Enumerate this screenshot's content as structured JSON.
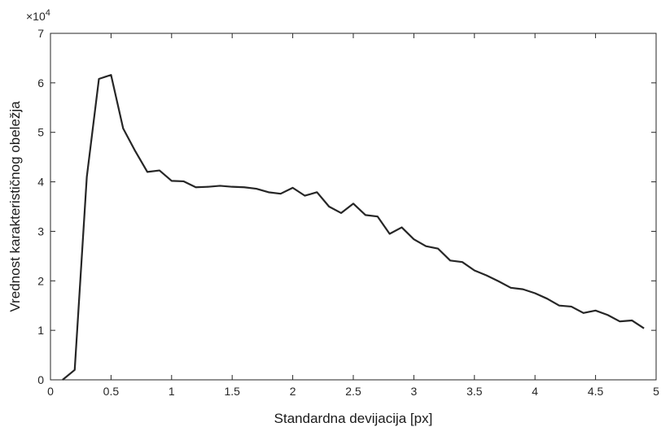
{
  "chart_data": {
    "type": "line",
    "xlabel": "Standardna devijacija [px]",
    "ylabel": "Vrednost karakterističnog obeležja",
    "y_exponent_label": "×10",
    "y_exponent_power": "4",
    "xlim": [
      0,
      5
    ],
    "ylim": [
      0,
      70000
    ],
    "x_ticks": [
      0,
      0.5,
      1,
      1.5,
      2,
      2.5,
      3,
      3.5,
      4,
      4.5,
      5
    ],
    "x_tick_labels": [
      "0",
      "0.5",
      "1",
      "1.5",
      "2",
      "2.5",
      "3",
      "3.5",
      "4",
      "4.5",
      "5"
    ],
    "y_ticks": [
      0,
      10000,
      20000,
      30000,
      40000,
      50000,
      60000,
      70000
    ],
    "y_tick_labels": [
      "0",
      "1",
      "2",
      "3",
      "4",
      "5",
      "6",
      "7"
    ],
    "grid": false,
    "box": true,
    "line_color": "#262626",
    "series": [
      {
        "x": [
          0.1,
          0.2,
          0.3,
          0.4,
          0.5,
          0.6,
          0.7,
          0.8,
          0.9,
          1.0,
          1.1,
          1.2,
          1.3,
          1.4,
          1.5,
          1.6,
          1.7,
          1.8,
          1.9,
          2.0,
          2.1,
          2.2,
          2.3,
          2.4,
          2.5,
          2.6,
          2.7,
          2.8,
          2.9,
          3.0,
          3.1,
          3.2,
          3.3,
          3.4,
          3.5,
          3.6,
          3.7,
          3.8,
          3.9,
          4.0,
          4.1,
          4.2,
          4.3,
          4.4,
          4.5,
          4.6,
          4.7,
          4.8,
          4.9
        ],
        "y": [
          0,
          2000,
          41000,
          60800,
          61600,
          50800,
          46200,
          42000,
          42300,
          40200,
          40100,
          38900,
          39000,
          39200,
          39000,
          38900,
          38600,
          37900,
          37600,
          38800,
          37200,
          37900,
          35000,
          33700,
          35600,
          33300,
          33000,
          29500,
          30800,
          28400,
          27000,
          26500,
          24100,
          23800,
          22100,
          21100,
          19900,
          18600,
          18300,
          17500,
          16400,
          15000,
          14800,
          13500,
          14000,
          13100,
          11800,
          12000,
          10400
        ]
      }
    ]
  }
}
